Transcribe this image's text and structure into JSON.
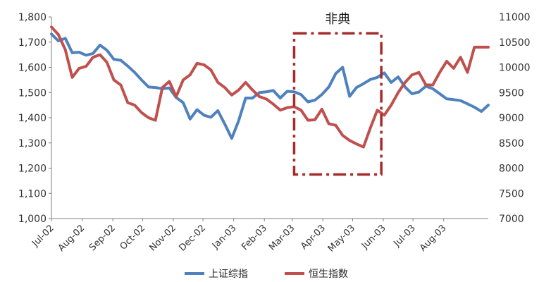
{
  "chart_data": {
    "type": "line",
    "title": "",
    "xlabel": "",
    "ylabel_left": "",
    "ylabel_right": "",
    "left_ylim": [
      1000,
      1800
    ],
    "left_yticks": [
      1000,
      1100,
      1200,
      1300,
      1400,
      1500,
      1600,
      1700,
      1800
    ],
    "left_ytick_labels": [
      "1,000",
      "1,100",
      "1,200",
      "1,300",
      "1,400",
      "1,500",
      "1,600",
      "1,700",
      "1,800"
    ],
    "right_ylim": [
      7000,
      11000
    ],
    "right_yticks": [
      7000,
      7500,
      8000,
      8500,
      9000,
      9500,
      10000,
      10500,
      11000
    ],
    "right_ytick_labels": [
      "7000",
      "7500",
      "8000",
      "8500",
      "9000",
      "9500",
      "10000",
      "10500",
      "11000"
    ],
    "x_range": [
      "2002-07-01",
      "2003-09-15"
    ],
    "categories": [
      "Jul-02",
      "Aug-02",
      "Sep-02",
      "Oct-02",
      "Nov-02",
      "Dec-02",
      "Jan-03",
      "Feb-03",
      "Mar-03",
      "Apr-03",
      "May-03",
      "Jun-03",
      "Jul-03",
      "Aug-03"
    ],
    "category_dates": [
      "2002-07-01",
      "2002-08-01",
      "2002-09-01",
      "2002-10-01",
      "2002-11-01",
      "2002-12-01",
      "2003-01-01",
      "2003-02-01",
      "2003-03-01",
      "2003-04-01",
      "2003-05-01",
      "2003-06-01",
      "2003-07-01",
      "2003-08-01"
    ],
    "grid": false,
    "legend_position": "bottom-center",
    "series": [
      {
        "name": "上证综指",
        "axis": "left",
        "color": "#4f81bd",
        "x": [
          "2002-07-01",
          "2002-07-08",
          "2002-07-15",
          "2002-07-22",
          "2002-07-29",
          "2002-08-05",
          "2002-08-12",
          "2002-08-19",
          "2002-08-26",
          "2002-09-02",
          "2002-09-09",
          "2002-09-16",
          "2002-09-23",
          "2002-09-30",
          "2002-10-07",
          "2002-10-14",
          "2002-10-21",
          "2002-10-28",
          "2002-11-04",
          "2002-11-11",
          "2002-11-18",
          "2002-11-25",
          "2002-12-02",
          "2002-12-09",
          "2002-12-16",
          "2002-12-23",
          "2002-12-30",
          "2003-01-06",
          "2003-01-13",
          "2003-01-20",
          "2003-01-27",
          "2003-02-03",
          "2003-02-10",
          "2003-02-17",
          "2003-02-24",
          "2003-03-03",
          "2003-03-10",
          "2003-03-17",
          "2003-03-24",
          "2003-03-31",
          "2003-04-07",
          "2003-04-14",
          "2003-04-21",
          "2003-04-28",
          "2003-05-05",
          "2003-05-12",
          "2003-05-19",
          "2003-05-26",
          "2003-06-02",
          "2003-06-09",
          "2003-06-16",
          "2003-06-23",
          "2003-06-30",
          "2003-07-07",
          "2003-07-14",
          "2003-07-21",
          "2003-07-28",
          "2003-08-04",
          "2003-08-11",
          "2003-08-18",
          "2003-08-25",
          "2003-09-01",
          "2003-09-08",
          "2003-09-15"
        ],
        "values": [
          1732,
          1705,
          1715,
          1658,
          1660,
          1648,
          1655,
          1688,
          1668,
          1632,
          1628,
          1605,
          1580,
          1550,
          1522,
          1520,
          1515,
          1518,
          1480,
          1460,
          1395,
          1432,
          1410,
          1402,
          1428,
          1375,
          1318,
          1388,
          1478,
          1478,
          1500,
          1503,
          1508,
          1478,
          1505,
          1503,
          1492,
          1463,
          1470,
          1492,
          1522,
          1575,
          1600,
          1485,
          1520,
          1535,
          1552,
          1560,
          1578,
          1540,
          1562,
          1522,
          1495,
          1502,
          1525,
          1515,
          1495,
          1475,
          1472,
          1468,
          1455,
          1442,
          1425,
          1450
        ]
      },
      {
        "name": "恒生指数",
        "axis": "right",
        "color": "#c0504d",
        "x": [
          "2002-07-01",
          "2002-07-08",
          "2002-07-15",
          "2002-07-22",
          "2002-07-29",
          "2002-08-05",
          "2002-08-12",
          "2002-08-19",
          "2002-08-26",
          "2002-09-02",
          "2002-09-09",
          "2002-09-16",
          "2002-09-23",
          "2002-09-30",
          "2002-10-07",
          "2002-10-14",
          "2002-10-21",
          "2002-10-28",
          "2002-11-04",
          "2002-11-11",
          "2002-11-18",
          "2002-11-25",
          "2002-12-02",
          "2002-12-09",
          "2002-12-16",
          "2002-12-23",
          "2002-12-30",
          "2003-01-06",
          "2003-01-13",
          "2003-01-20",
          "2003-01-27",
          "2003-02-03",
          "2003-02-10",
          "2003-02-17",
          "2003-02-24",
          "2003-03-03",
          "2003-03-10",
          "2003-03-17",
          "2003-03-24",
          "2003-03-31",
          "2003-04-07",
          "2003-04-14",
          "2003-04-21",
          "2003-04-28",
          "2003-05-05",
          "2003-05-12",
          "2003-05-19",
          "2003-05-26",
          "2003-06-02",
          "2003-06-09",
          "2003-06-16",
          "2003-06-23",
          "2003-06-30",
          "2003-07-07",
          "2003-07-14",
          "2003-07-21",
          "2003-07-28",
          "2003-08-04",
          "2003-08-11",
          "2003-08-18",
          "2003-08-25",
          "2003-09-01",
          "2003-09-08",
          "2003-09-15"
        ],
        "values": [
          10800,
          10650,
          10350,
          9800,
          9980,
          10020,
          10200,
          10250,
          10100,
          9750,
          9650,
          9300,
          9250,
          9100,
          9000,
          8950,
          9600,
          9720,
          9420,
          9750,
          9850,
          10080,
          10050,
          9950,
          9700,
          9600,
          9450,
          9550,
          9700,
          9550,
          9420,
          9370,
          9270,
          9150,
          9200,
          9220,
          9150,
          8950,
          8960,
          9170,
          8880,
          8850,
          8650,
          8550,
          8480,
          8420,
          8800,
          9150,
          9050,
          9250,
          9500,
          9700,
          9850,
          9900,
          9650,
          9650,
          9900,
          10120,
          9980,
          10200,
          9900,
          10400,
          10400,
          10400
        ]
      }
    ],
    "annotations": [
      {
        "label": "非典",
        "type": "dash-dot-box",
        "color": "#a52a2a",
        "x_start": "2003-03-03",
        "x_end": "2003-05-30",
        "y_top_left_axis": 1735,
        "y_bottom_left_axis": 1175
      }
    ]
  }
}
